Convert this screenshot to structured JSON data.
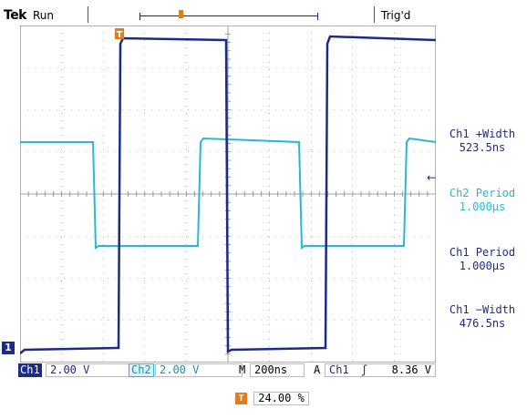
{
  "header": {
    "brand": "Tek",
    "acq_state": "Run",
    "trigger_state": "Trig'd"
  },
  "trigger_marker_glyph": "T",
  "channel_marker": "1",
  "ref_arrow_glyph": "←",
  "measurements": [
    {
      "label": "Ch1 +Width",
      "value": "523.5ns",
      "color": "#1c2b8a"
    },
    {
      "label": "Ch2 Period",
      "value": "1.000µs",
      "color": "#27b8d6"
    },
    {
      "label": "Ch1 Period",
      "value": "1.000µs",
      "color": "#1c2b8a"
    },
    {
      "label": "Ch1 −Width",
      "value": "476.5ns",
      "color": "#1c2b8a"
    }
  ],
  "status_bar": {
    "ch1_label": "Ch1",
    "ch1_scale": "2.00 V",
    "ch2_label": "Ch2",
    "ch2_scale": "2.00 V",
    "timebase_prefix": "M",
    "timebase": "200ns",
    "trigger_mode": "A",
    "trigger_source": "Ch1",
    "trigger_slope_glyph": "ʃ",
    "trigger_level": "8.36 V"
  },
  "trigger_position": {
    "icon": "T",
    "value": "24.00 %"
  },
  "colors": {
    "ch1": "#1c2b8a",
    "ch2": "#27b8d6",
    "trigger": "#e37b1f",
    "grid": "#888888"
  }
}
